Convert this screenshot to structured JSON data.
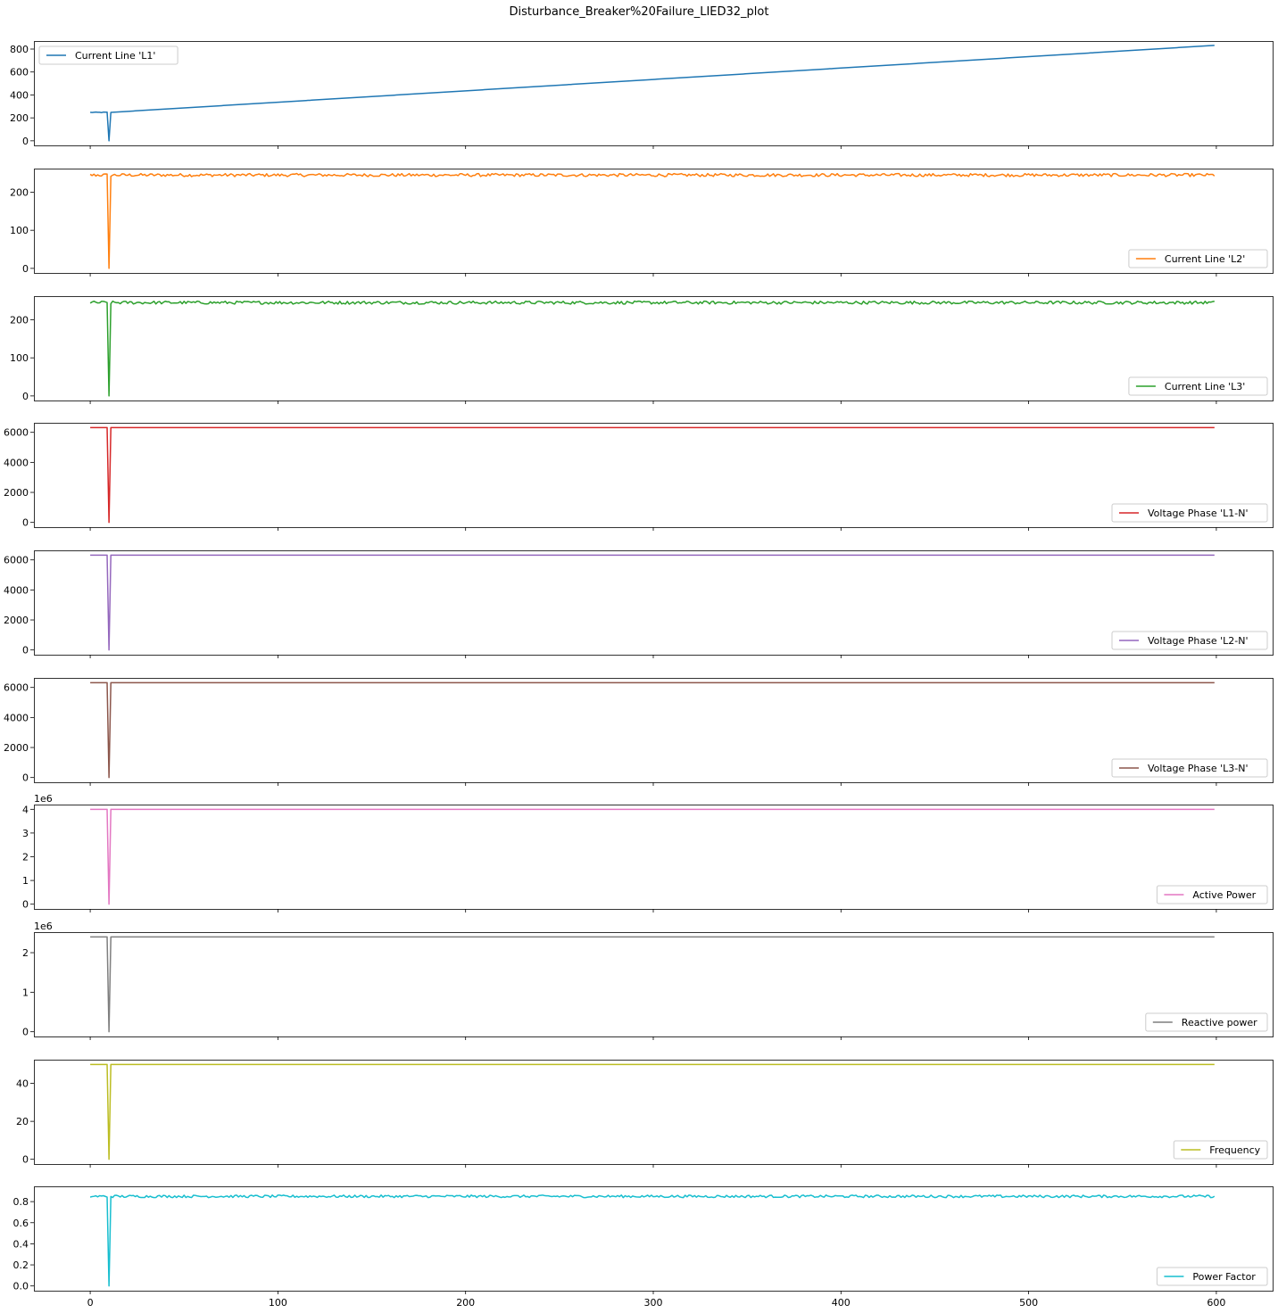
{
  "chart_data": {
    "type": "line",
    "title": "Disturbance_Breaker%20Failure_LIED32_plot",
    "xlim": [
      -30,
      630
    ],
    "x_ticks": [
      "0",
      "100",
      "200",
      "300",
      "400",
      "500",
      "600"
    ],
    "x_tick_values": [
      0,
      100,
      200,
      300,
      400,
      500,
      600
    ],
    "x_range": [
      0,
      599
    ],
    "dip_x": 10,
    "grid": false,
    "subplots": [
      {
        "name": "Current Line 'L1'",
        "color": "#1f77b4",
        "legend_loc": "upper-left",
        "offset_text": "",
        "ylim": [
          -40,
          870
        ],
        "y_ticks": [
          "0",
          "200",
          "400",
          "600",
          "800"
        ],
        "y_tick_values": [
          0,
          200,
          400,
          600,
          800
        ],
        "baseline": 248,
        "noise": 3,
        "dip_value": 0,
        "trend_end": 832,
        "trend_start_x": 11
      },
      {
        "name": "Current Line 'L2'",
        "color": "#ff7f0e",
        "legend_loc": "lower-right",
        "offset_text": "",
        "ylim": [
          -12,
          262
        ],
        "y_ticks": [
          "0",
          "100",
          "200"
        ],
        "y_tick_values": [
          0,
          100,
          200
        ],
        "baseline": 245,
        "noise": 4,
        "dip_value": 0
      },
      {
        "name": "Current Line 'L3'",
        "color": "#2ca02c",
        "legend_loc": "lower-right",
        "offset_text": "",
        "ylim": [
          -12,
          262
        ],
        "y_ticks": [
          "0",
          "100",
          "200"
        ],
        "y_tick_values": [
          0,
          100,
          200
        ],
        "baseline": 245,
        "noise": 4,
        "dip_value": 0
      },
      {
        "name": "Voltage Phase 'L1-N'",
        "color": "#d62728",
        "legend_loc": "lower-right",
        "offset_text": "",
        "ylim": [
          -316,
          6636
        ],
        "y_ticks": [
          "0",
          "2000",
          "4000",
          "6000"
        ],
        "y_tick_values": [
          0,
          2000,
          4000,
          6000
        ],
        "baseline": 6320,
        "noise": 0,
        "dip_value": 0
      },
      {
        "name": "Voltage Phase 'L2-N'",
        "color": "#9467bd",
        "legend_loc": "lower-right",
        "offset_text": "",
        "ylim": [
          -316,
          6636
        ],
        "y_ticks": [
          "0",
          "2000",
          "4000",
          "6000"
        ],
        "y_tick_values": [
          0,
          2000,
          4000,
          6000
        ],
        "baseline": 6320,
        "noise": 0,
        "dip_value": 0
      },
      {
        "name": "Voltage Phase 'L3-N'",
        "color": "#8c564b",
        "legend_loc": "lower-right",
        "offset_text": "",
        "ylim": [
          -316,
          6636
        ],
        "y_ticks": [
          "0",
          "2000",
          "4000",
          "6000"
        ],
        "y_tick_values": [
          0,
          2000,
          4000,
          6000
        ],
        "baseline": 6320,
        "noise": 0,
        "dip_value": 0
      },
      {
        "name": "Active Power",
        "color": "#e377c2",
        "legend_loc": "lower-right",
        "offset_text": "1e6",
        "ylim": [
          -0.2,
          4.2
        ],
        "y_ticks": [
          "0",
          "1",
          "2",
          "3",
          "4"
        ],
        "y_tick_values": [
          0,
          1,
          2,
          3,
          4
        ],
        "baseline": 4.0,
        "noise": 0,
        "dip_value": 0
      },
      {
        "name": "Reactive power",
        "color": "#7f7f7f",
        "legend_loc": "lower-right",
        "offset_text": "1e6",
        "ylim": [
          -0.12,
          2.52
        ],
        "y_ticks": [
          "0",
          "1",
          "2"
        ],
        "y_tick_values": [
          0,
          1,
          2
        ],
        "baseline": 2.4,
        "noise": 0,
        "dip_value": 0
      },
      {
        "name": "Frequency",
        "color": "#bcbd22",
        "legend_loc": "lower-right",
        "offset_text": "",
        "ylim": [
          -2.5,
          52.5
        ],
        "y_ticks": [
          "0",
          "20",
          "40"
        ],
        "y_tick_values": [
          0,
          20,
          40
        ],
        "baseline": 50,
        "noise": 0,
        "dip_value": 0
      },
      {
        "name": "Power Factor",
        "color": "#17becf",
        "legend_loc": "lower-right",
        "offset_text": "",
        "ylim": [
          -0.045,
          0.945
        ],
        "y_ticks": [
          "0.0",
          "0.2",
          "0.4",
          "0.6",
          "0.8"
        ],
        "y_tick_values": [
          0,
          0.2,
          0.4,
          0.6,
          0.8
        ],
        "baseline": 0.85,
        "noise": 0.012,
        "dip_value": 0
      }
    ]
  }
}
